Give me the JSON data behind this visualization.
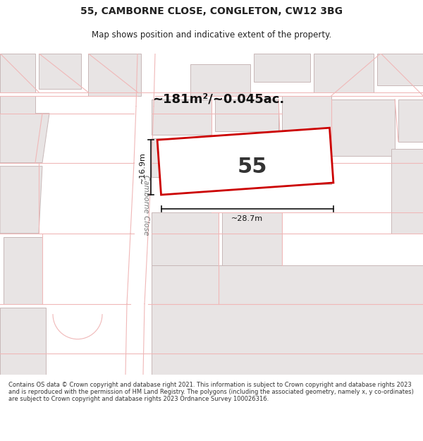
{
  "title": "55, CAMBORNE CLOSE, CONGLETON, CW12 3BG",
  "subtitle": "Map shows position and indicative extent of the property.",
  "area_text": "~181m²/~0.045ac.",
  "plot_number": "55",
  "dim_width": "~28.7m",
  "dim_height": "~16.9m",
  "footer": "Contains OS data © Crown copyright and database right 2021. This information is subject to Crown copyright and database rights 2023 and is reproduced with the permission of HM Land Registry. The polygons (including the associated geometry, namely x, y co-ordinates) are subject to Crown copyright and database rights 2023 Ordnance Survey 100026316.",
  "bg_color": "#ffffff",
  "map_bg": "#ffffff",
  "road_line_color": "#f0b8b8",
  "building_fill": "#e8e4e4",
  "building_edge": "#c8b8b8",
  "plot_fill": "#ffffff",
  "plot_edge": "#cc0000",
  "text_color": "#222222",
  "footer_color": "#333333",
  "dim_color": "#111111",
  "road_label_color": "#777777",
  "title_fontsize": 10,
  "subtitle_fontsize": 8.5,
  "area_fontsize": 14,
  "plot_label_fontsize": 22,
  "footer_fontsize": 6.0
}
